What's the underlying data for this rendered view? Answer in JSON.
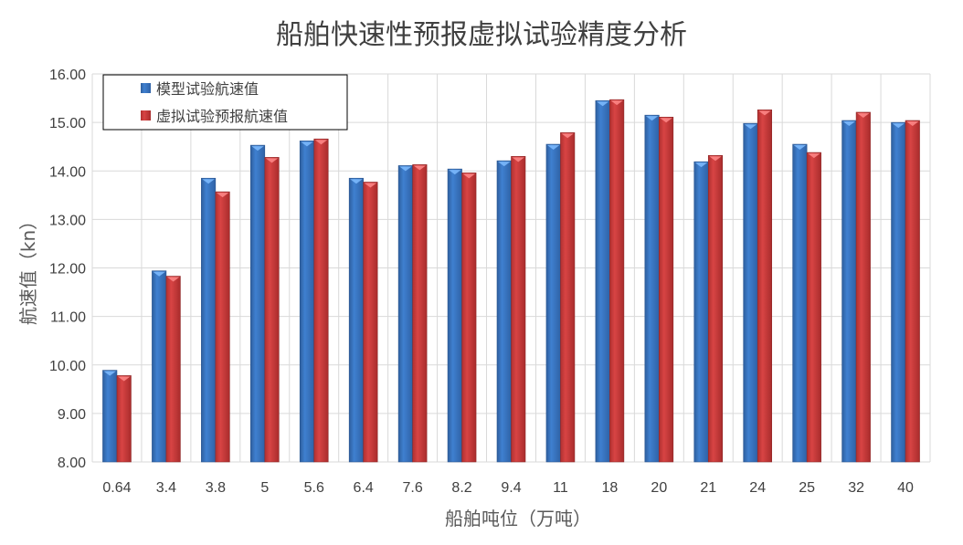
{
  "chart_data": {
    "type": "bar",
    "title": "船舶快速性预报虚拟试验精度分析",
    "xlabel": "船舶吨位（万吨）",
    "ylabel": "航速值（kn）",
    "ylim": [
      8,
      16
    ],
    "yticks": [
      "8.00",
      "9.00",
      "10.00",
      "11.00",
      "12.00",
      "13.00",
      "14.00",
      "15.00",
      "16.00"
    ],
    "grid": true,
    "legend_position": "top-left",
    "categories": [
      "0.64",
      "3.4",
      "3.8",
      "5",
      "5.6",
      "6.4",
      "7.6",
      "8.2",
      "9.4",
      "11",
      "18",
      "20",
      "21",
      "24",
      "25",
      "32",
      "40"
    ],
    "series": [
      {
        "name": "模型试验航速值",
        "color": "#3a78c6",
        "values": [
          9.89,
          11.94,
          13.85,
          14.53,
          14.62,
          13.85,
          14.11,
          14.04,
          14.21,
          14.55,
          15.45,
          15.15,
          14.19,
          14.98,
          14.55,
          15.04,
          15.0
        ]
      },
      {
        "name": "虚拟试验预报航速值",
        "color": "#d03c3c",
        "values": [
          9.78,
          11.83,
          13.57,
          14.28,
          14.66,
          13.77,
          14.13,
          13.96,
          14.3,
          14.79,
          15.47,
          15.11,
          14.32,
          15.26,
          14.38,
          15.21,
          15.04
        ]
      }
    ]
  }
}
